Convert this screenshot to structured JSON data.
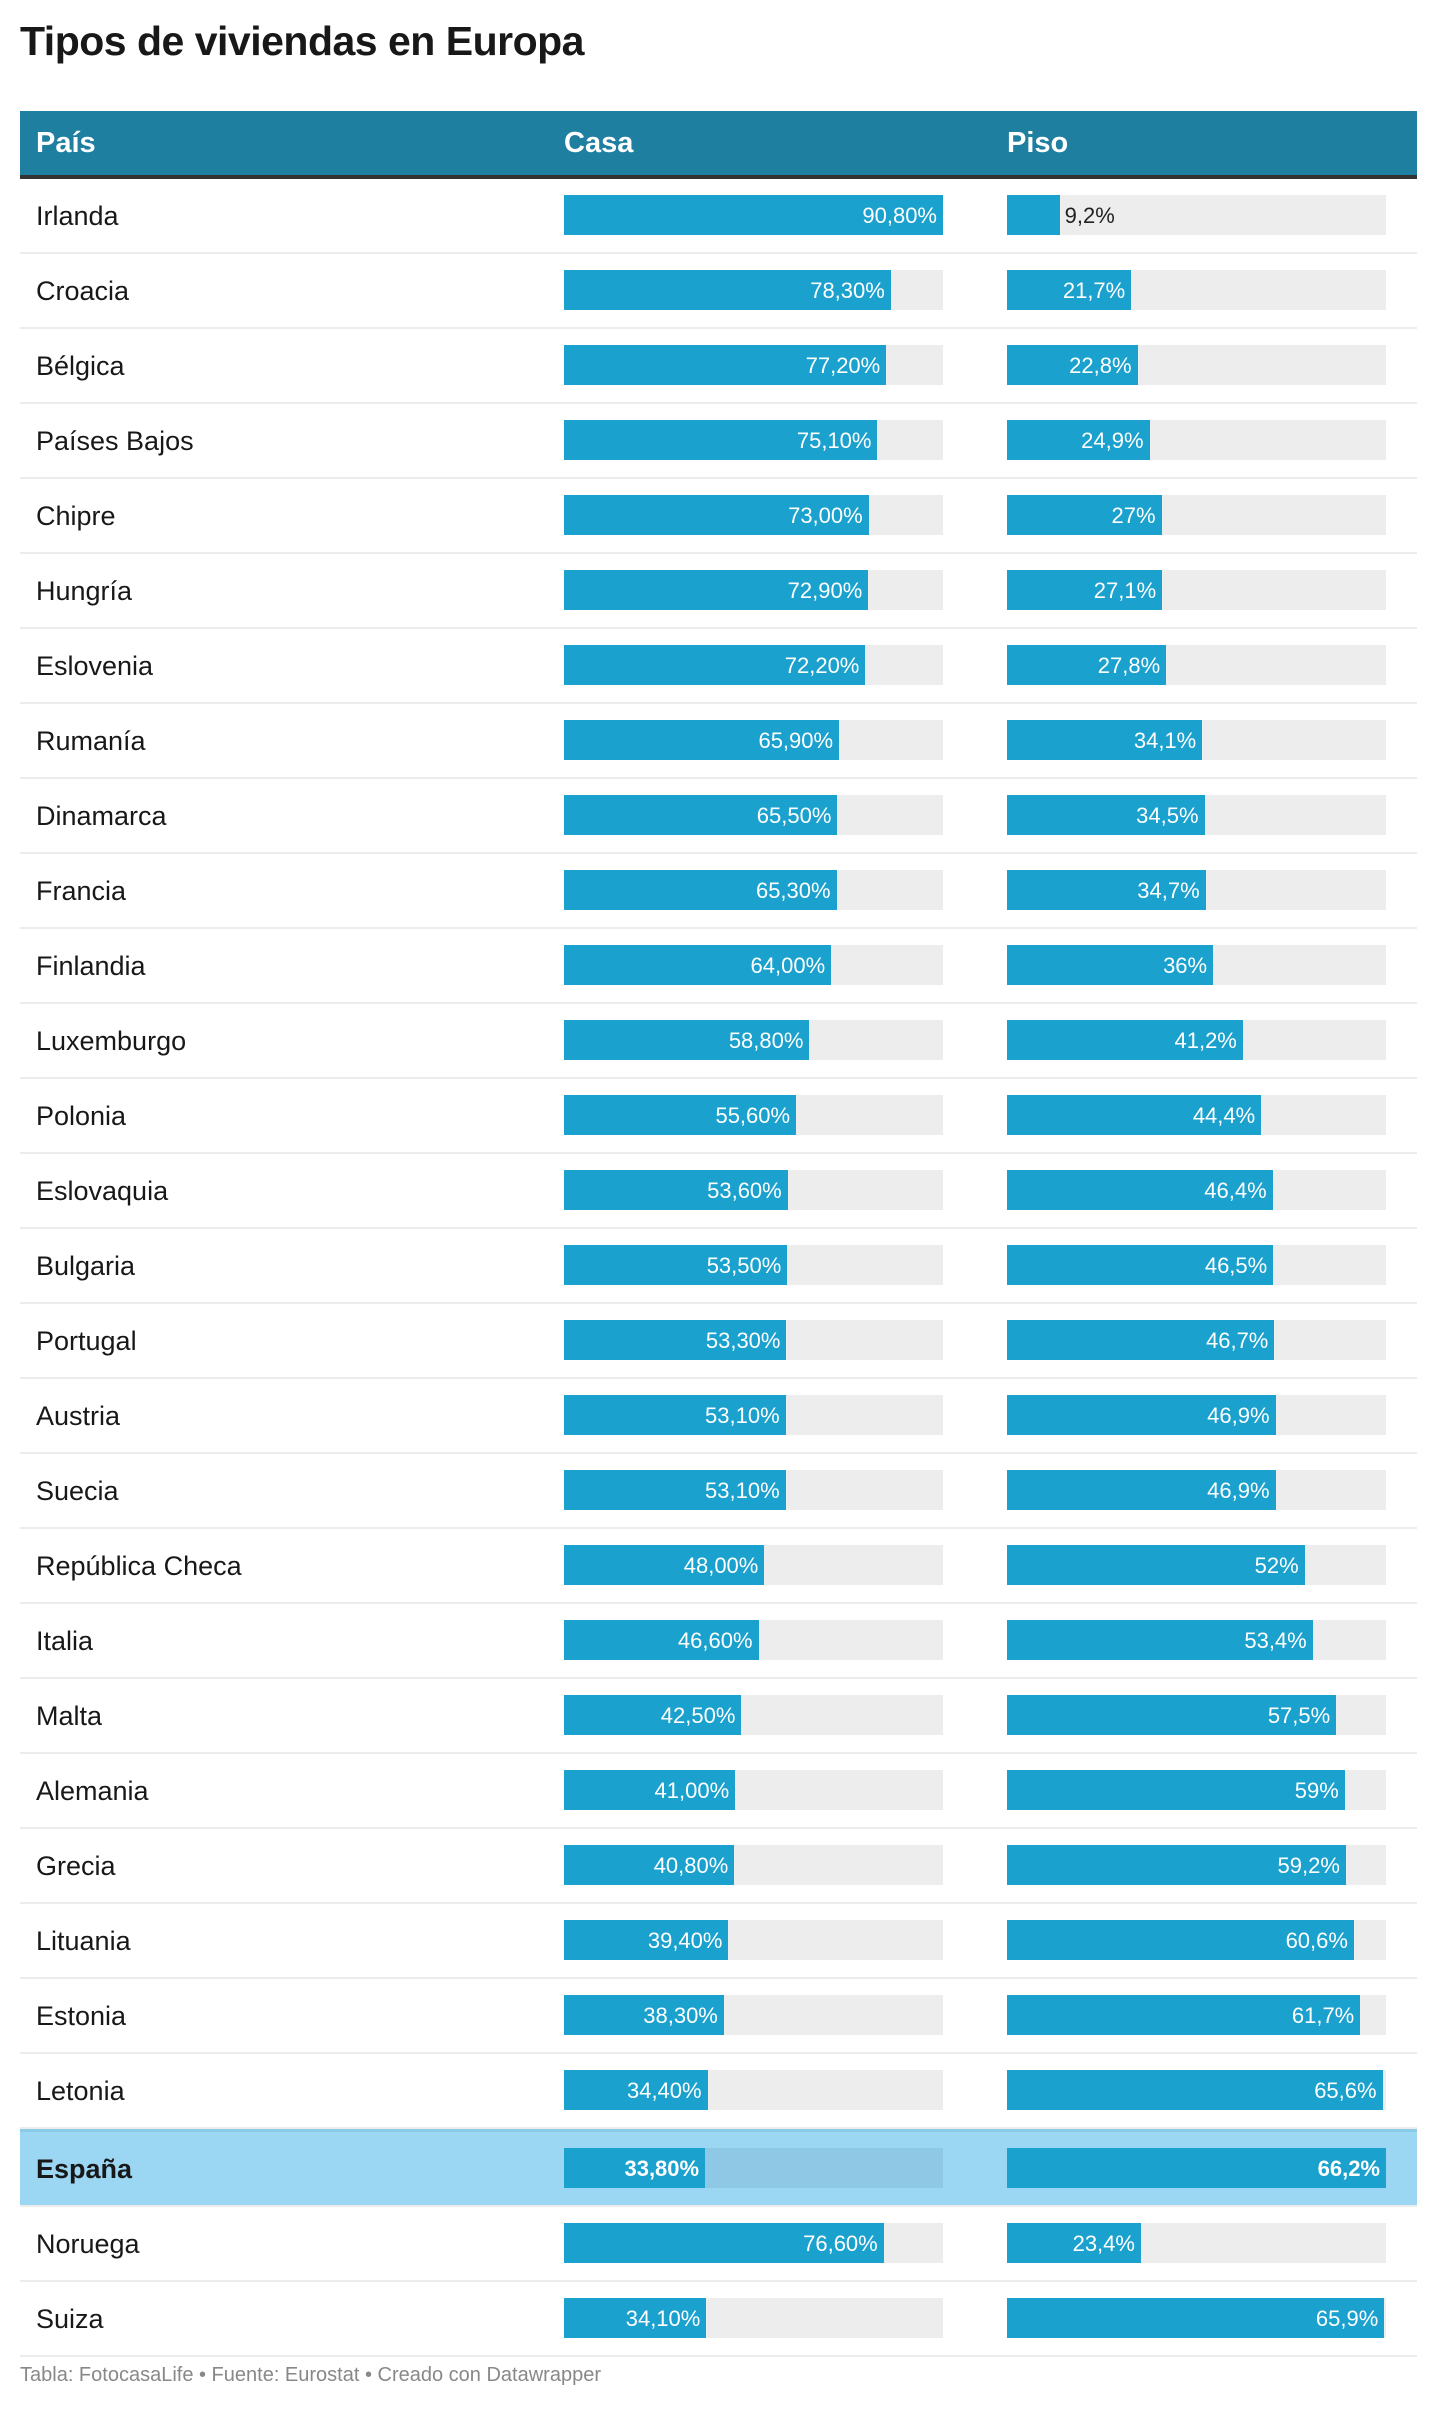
{
  "title": "Tipos de viviendas en Europa",
  "footer": "Tabla: FotocasaLife • Fuente: Eurostat • Creado con Datawrapper",
  "colors": {
    "header": "#1f7fa0",
    "bar": "#1aa1ce",
    "track": "#ededed",
    "highlight": "#9bd6f3"
  },
  "chart_data": {
    "type": "table",
    "columns": [
      "País",
      "Casa",
      "Piso"
    ],
    "casa_max": 90.8,
    "piso_max": 66.2,
    "highlight": "España",
    "rows": [
      {
        "country": "Irlanda",
        "casa": 90.8,
        "casa_label": "90,80%",
        "piso": 9.2,
        "piso_label": "9,2%"
      },
      {
        "country": "Croacia",
        "casa": 78.3,
        "casa_label": "78,30%",
        "piso": 21.7,
        "piso_label": "21,7%"
      },
      {
        "country": "Bélgica",
        "casa": 77.2,
        "casa_label": "77,20%",
        "piso": 22.8,
        "piso_label": "22,8%"
      },
      {
        "country": "Países Bajos",
        "casa": 75.1,
        "casa_label": "75,10%",
        "piso": 24.9,
        "piso_label": "24,9%"
      },
      {
        "country": "Chipre",
        "casa": 73.0,
        "casa_label": "73,00%",
        "piso": 27,
        "piso_label": "27%"
      },
      {
        "country": "Hungría",
        "casa": 72.9,
        "casa_label": "72,90%",
        "piso": 27.1,
        "piso_label": "27,1%"
      },
      {
        "country": "Eslovenia",
        "casa": 72.2,
        "casa_label": "72,20%",
        "piso": 27.8,
        "piso_label": "27,8%"
      },
      {
        "country": "Rumanía",
        "casa": 65.9,
        "casa_label": "65,90%",
        "piso": 34.1,
        "piso_label": "34,1%"
      },
      {
        "country": "Dinamarca",
        "casa": 65.5,
        "casa_label": "65,50%",
        "piso": 34.5,
        "piso_label": "34,5%"
      },
      {
        "country": "Francia",
        "casa": 65.3,
        "casa_label": "65,30%",
        "piso": 34.7,
        "piso_label": "34,7%"
      },
      {
        "country": "Finlandia",
        "casa": 64.0,
        "casa_label": "64,00%",
        "piso": 36,
        "piso_label": "36%"
      },
      {
        "country": "Luxemburgo",
        "casa": 58.8,
        "casa_label": "58,80%",
        "piso": 41.2,
        "piso_label": "41,2%"
      },
      {
        "country": "Polonia",
        "casa": 55.6,
        "casa_label": "55,60%",
        "piso": 44.4,
        "piso_label": "44,4%"
      },
      {
        "country": "Eslovaquia",
        "casa": 53.6,
        "casa_label": "53,60%",
        "piso": 46.4,
        "piso_label": "46,4%"
      },
      {
        "country": "Bulgaria",
        "casa": 53.5,
        "casa_label": "53,50%",
        "piso": 46.5,
        "piso_label": "46,5%"
      },
      {
        "country": "Portugal",
        "casa": 53.3,
        "casa_label": "53,30%",
        "piso": 46.7,
        "piso_label": "46,7%"
      },
      {
        "country": "Austria",
        "casa": 53.1,
        "casa_label": "53,10%",
        "piso": 46.9,
        "piso_label": "46,9%"
      },
      {
        "country": "Suecia",
        "casa": 53.1,
        "casa_label": "53,10%",
        "piso": 46.9,
        "piso_label": "46,9%"
      },
      {
        "country": "República Checa",
        "casa": 48.0,
        "casa_label": "48,00%",
        "piso": 52,
        "piso_label": "52%"
      },
      {
        "country": "Italia",
        "casa": 46.6,
        "casa_label": "46,60%",
        "piso": 53.4,
        "piso_label": "53,4%"
      },
      {
        "country": "Malta",
        "casa": 42.5,
        "casa_label": "42,50%",
        "piso": 57.5,
        "piso_label": "57,5%"
      },
      {
        "country": "Alemania",
        "casa": 41.0,
        "casa_label": "41,00%",
        "piso": 59,
        "piso_label": "59%"
      },
      {
        "country": "Grecia",
        "casa": 40.8,
        "casa_label": "40,80%",
        "piso": 59.2,
        "piso_label": "59,2%"
      },
      {
        "country": "Lituania",
        "casa": 39.4,
        "casa_label": "39,40%",
        "piso": 60.6,
        "piso_label": "60,6%"
      },
      {
        "country": "Estonia",
        "casa": 38.3,
        "casa_label": "38,30%",
        "piso": 61.7,
        "piso_label": "61,7%"
      },
      {
        "country": "Letonia",
        "casa": 34.4,
        "casa_label": "34,40%",
        "piso": 65.6,
        "piso_label": "65,6%"
      },
      {
        "country": "España",
        "casa": 33.8,
        "casa_label": "33,80%",
        "piso": 66.2,
        "piso_label": "66,2%"
      },
      {
        "country": "Noruega",
        "casa": 76.6,
        "casa_label": "76,60%",
        "piso": 23.4,
        "piso_label": "23,4%"
      },
      {
        "country": "Suiza",
        "casa": 34.1,
        "casa_label": "34,10%",
        "piso": 65.9,
        "piso_label": "65,9%"
      }
    ]
  }
}
